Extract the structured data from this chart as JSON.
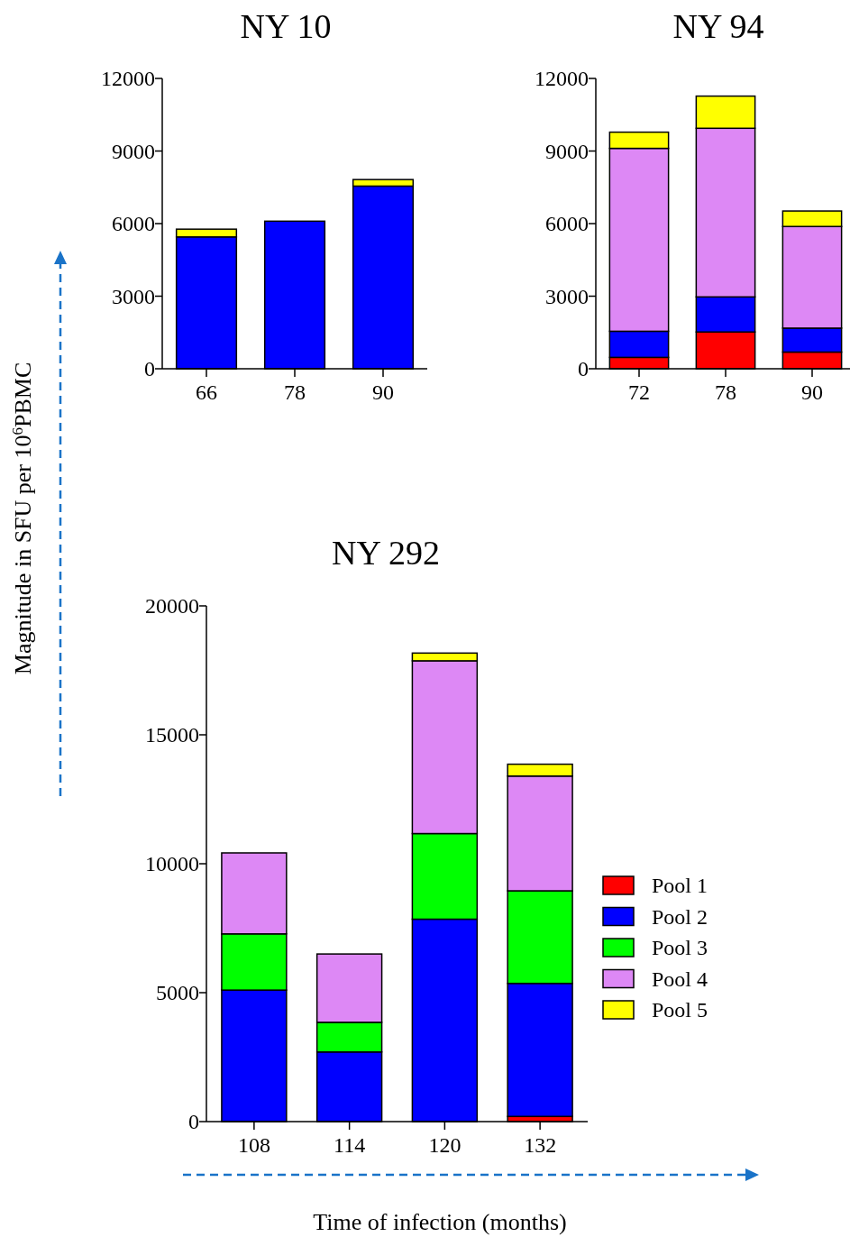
{
  "chart_data": [
    {
      "type": "bar",
      "title": "NY 10",
      "categories": [
        "66",
        "78",
        "90"
      ],
      "stacked": true,
      "ylim": [
        0,
        12000
      ],
      "yticks": [
        0,
        3000,
        6000,
        9000,
        12000
      ],
      "grid": false,
      "legend": false,
      "series": [
        {
          "color": "#0000ff",
          "values": [
            5450,
            6100,
            7550
          ]
        },
        {
          "color": "#ffff00",
          "values": [
            320,
            0,
            270
          ]
        }
      ]
    },
    {
      "type": "bar",
      "title": "NY 94",
      "categories": [
        "72",
        "78",
        "90"
      ],
      "stacked": true,
      "ylim": [
        0,
        12000
      ],
      "yticks": [
        0,
        3000,
        6000,
        9000,
        12000
      ],
      "grid": false,
      "legend": false,
      "series": [
        {
          "color": "#ff0000",
          "values": [
            470,
            1520,
            690
          ]
        },
        {
          "color": "#0000ff",
          "values": [
            1080,
            1450,
            990
          ]
        },
        {
          "color": "#dd88f5",
          "values": [
            7560,
            6970,
            4200
          ]
        },
        {
          "color": "#ffff00",
          "values": [
            670,
            1330,
            640
          ]
        }
      ]
    },
    {
      "type": "bar",
      "title": "NY 292",
      "xlabel": "Time of infection (months)",
      "ylabel": "Magnitude in SFU per 10$^{6}$PBMC",
      "categories": [
        "108",
        "114",
        "120",
        "132"
      ],
      "stacked": true,
      "ylim": [
        0,
        20000
      ],
      "yticks": [
        0,
        5000,
        10000,
        15000,
        20000
      ],
      "grid": false,
      "legend": "right",
      "series": [
        {
          "name": "Pool 1",
          "color": "#ff0000",
          "values": [
            0,
            0,
            0,
            200
          ]
        },
        {
          "name": "Pool 2",
          "color": "#0000ff",
          "values": [
            5100,
            2700,
            7850,
            5160
          ]
        },
        {
          "name": "Pool 3",
          "color": "#00ff00",
          "values": [
            2180,
            1150,
            3320,
            3590
          ]
        },
        {
          "name": "Pool 4",
          "color": "#dd88f5",
          "values": [
            3140,
            2650,
            6700,
            4450
          ]
        },
        {
          "name": "Pool 5",
          "color": "#ffff00",
          "values": [
            0,
            0,
            300,
            460
          ]
        }
      ]
    }
  ]
}
